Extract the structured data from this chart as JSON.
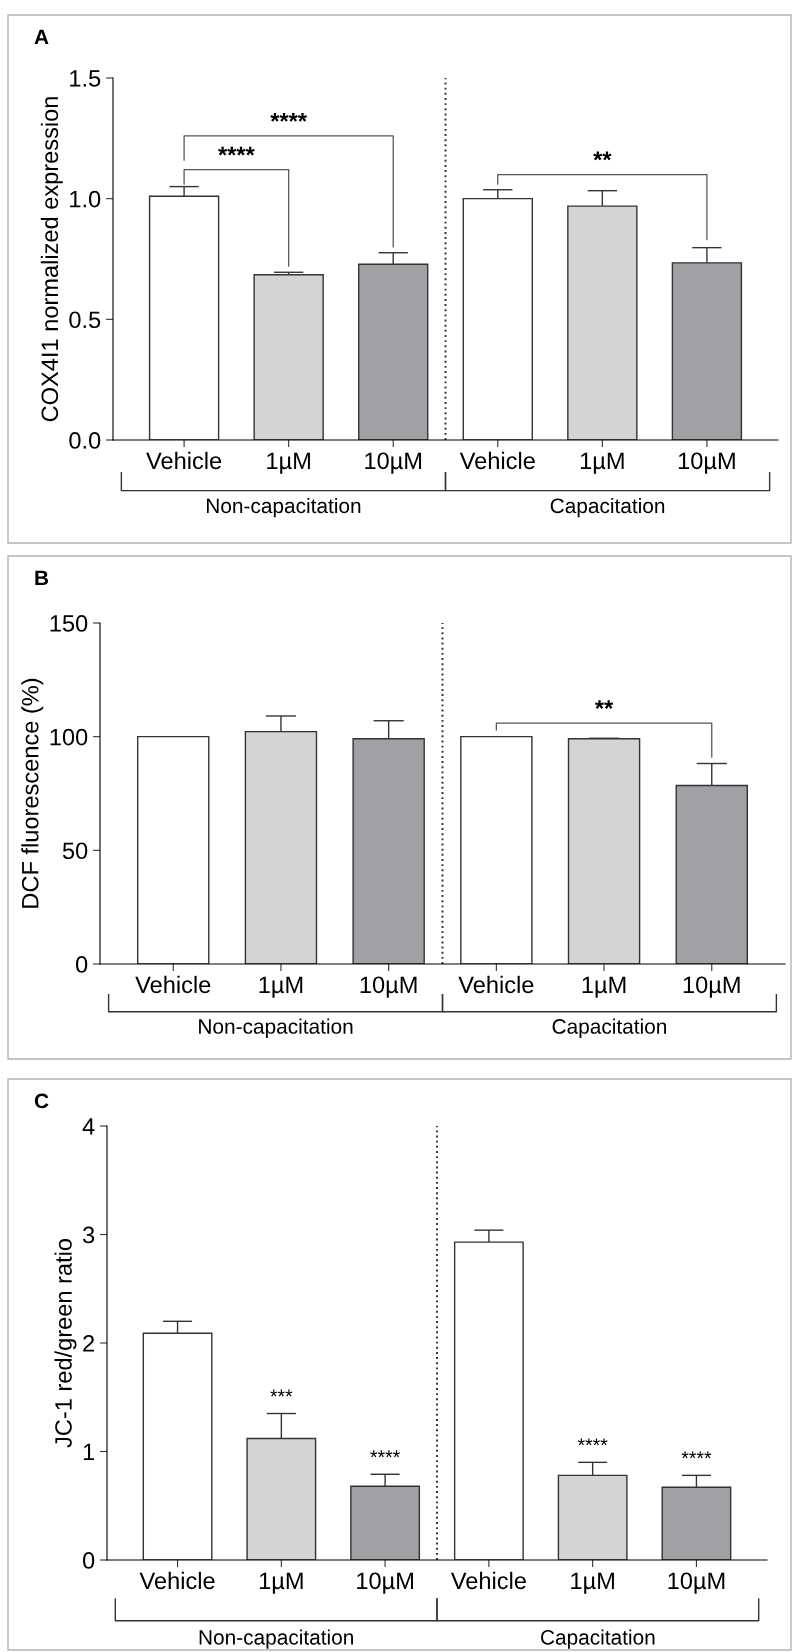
{
  "chart_data": [
    {
      "type": "bar",
      "title": "A",
      "ylabel": "COX4I1 normalized expression",
      "categories": [
        "Vehicle",
        "1µM",
        "10µM",
        "Vehicle",
        "1µM",
        "10µM"
      ],
      "values": [
        1.01,
        0.685,
        0.728,
        1.0,
        0.969,
        0.734
      ],
      "errors": [
        [
          1.01,
          1.05
        ],
        [
          0.685,
          0.695
        ],
        [
          0.728,
          0.776
        ],
        [
          1.0,
          1.037
        ],
        [
          0.969,
          1.033
        ],
        [
          0.734,
          0.797
        ]
      ],
      "colors": [
        "#ffffff",
        "#d4d4d4",
        "#a0a0a5",
        "#ffffff",
        "#d4d4d4",
        "#a0a0a5"
      ],
      "ylim": [
        0,
        1.5
      ],
      "yticks": [
        {
          "value": 0,
          "label": "0.0"
        },
        0.5,
        {
          "value": 1,
          "label": "1.0"
        },
        1.5
      ],
      "annotations": [
        "****",
        "****",
        "**",
        "Non-capacitation",
        "Capacitation"
      ]
    },
    {
      "type": "bar",
      "title": "B",
      "ylabel": "DCF fluorescence (%)",
      "categories": [
        "Vehicle",
        "1µM",
        "10µM",
        "Vehicle",
        "1µM",
        "10µM"
      ],
      "values": [
        100,
        102.2,
        99.1,
        100,
        99.1,
        78.5
      ],
      "errors": [
        null,
        [
          102.2,
          109.1
        ],
        [
          99.1,
          107
        ],
        null,
        [
          99.1,
          99.3
        ],
        [
          78.5,
          88.2
        ]
      ],
      "colors": [
        "#ffffff",
        "#d4d4d4",
        "#a0a0a5",
        "#ffffff",
        "#d4d4d4",
        "#a0a0a5"
      ],
      "ylim": [
        0,
        150
      ],
      "yticks": [
        0,
        50,
        100,
        150
      ],
      "annotations": [
        "**",
        "Non-capacitation",
        "Capacitation"
      ]
    },
    {
      "type": "bar",
      "title": "C",
      "ylabel": "JC-1 red/green ratio",
      "categories": [
        "Vehicle",
        "1µM",
        "10µM",
        "Vehicle",
        "1µM",
        "10µM"
      ],
      "values": [
        2.09,
        1.12,
        0.68,
        2.93,
        0.78,
        0.67
      ],
      "errors": [
        [
          2.09,
          2.2
        ],
        [
          1.12,
          1.35
        ],
        [
          0.68,
          0.79
        ],
        [
          2.93,
          3.04
        ],
        [
          0.78,
          0.9
        ],
        [
          0.67,
          0.78
        ]
      ],
      "value_labels": [
        null,
        "***",
        "****",
        null,
        "****",
        "****"
      ],
      "colors": [
        "#ffffff",
        "#d4d4d4",
        "#a0a0a5",
        "#ffffff",
        "#d4d4d4",
        "#a0a0a5"
      ],
      "ylim": [
        0,
        4
      ],
      "yticks": [
        0,
        1,
        2,
        3,
        4
      ],
      "annotations": [
        "Non-capacitation",
        "Capacitation"
      ]
    }
  ]
}
